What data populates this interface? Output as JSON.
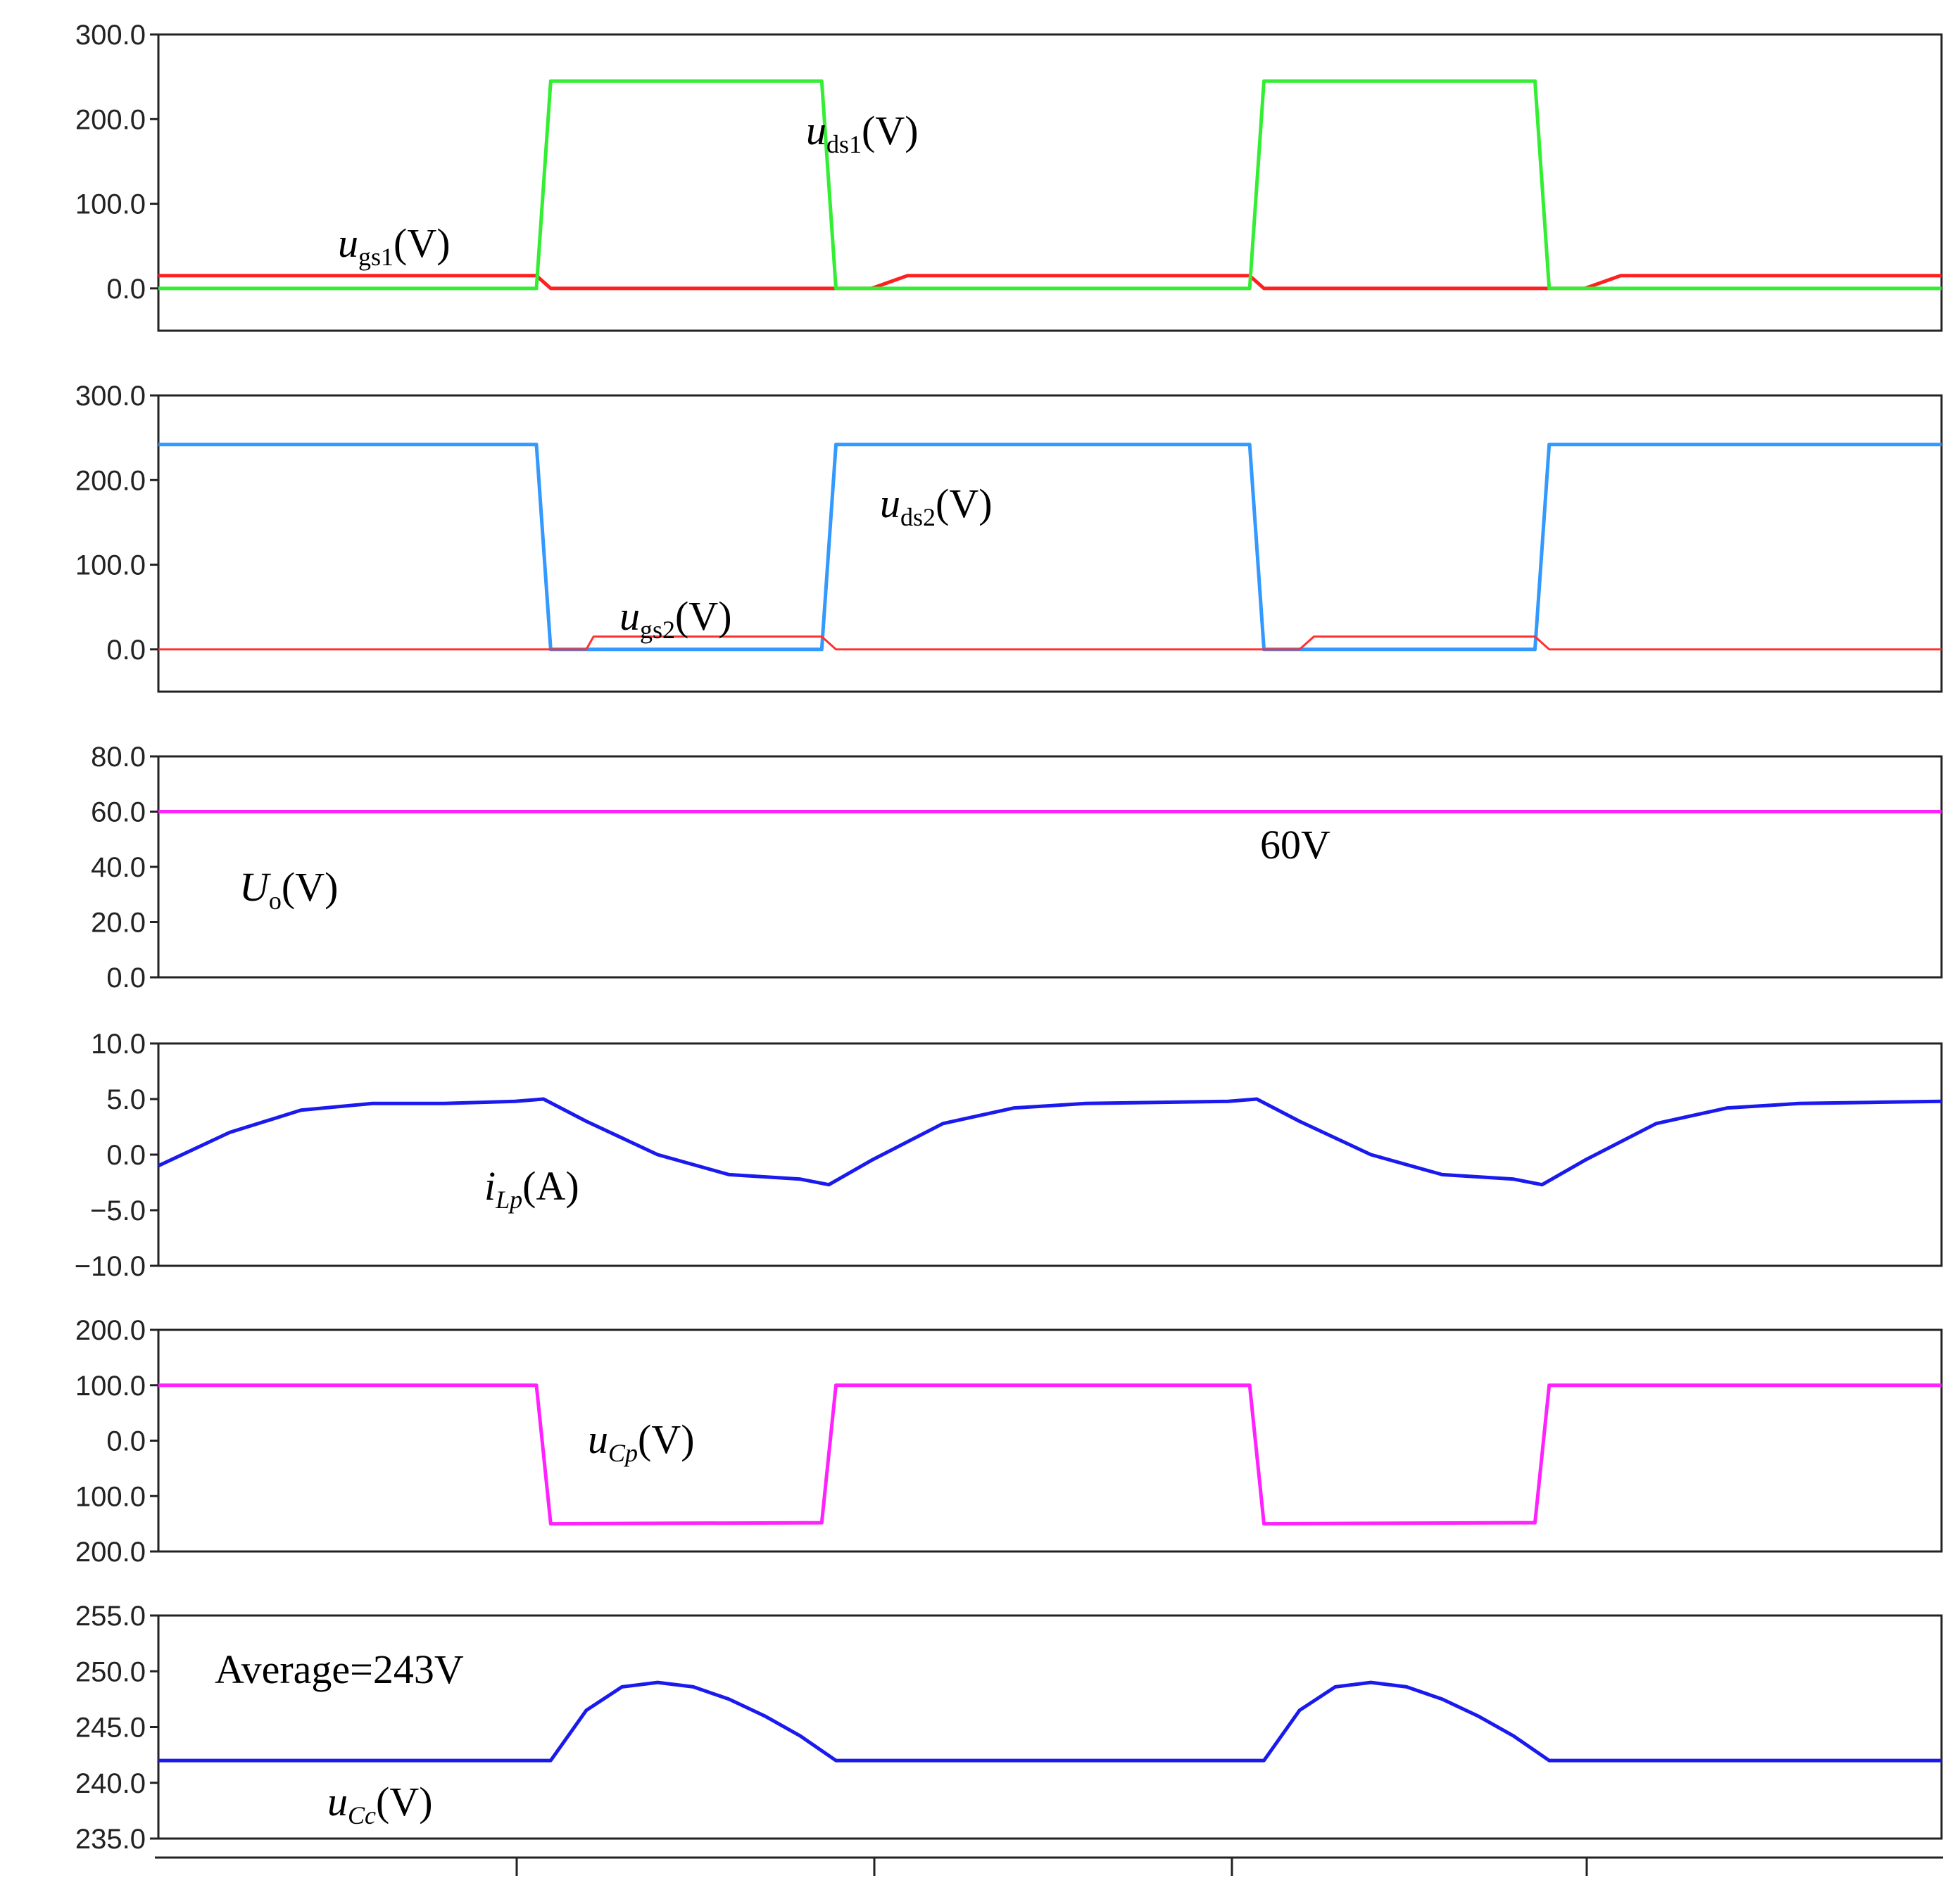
{
  "chart_data": [
    {
      "type": "line",
      "ylim": [
        -50,
        300
      ],
      "yticks": [
        "300.0",
        "200.0",
        "100.0",
        "0.0"
      ],
      "x": [
        0,
        5.3,
        5.5,
        9.3,
        9.5,
        10.0,
        10.5,
        15.3,
        15.5,
        19.3,
        19.5,
        20.0,
        20.5,
        25.0
      ],
      "series": [
        {
          "name": "u_gs1",
          "color": "#ff2020",
          "values": [
            15,
            15,
            0,
            0,
            0,
            0,
            15,
            15,
            0,
            0,
            0,
            0,
            15,
            15
          ]
        },
        {
          "name": "u_ds1",
          "color": "#33ee33",
          "values": [
            0,
            0,
            245,
            245,
            0,
            0,
            0,
            0,
            245,
            245,
            0,
            0,
            0,
            0
          ]
        }
      ],
      "annotations": [
        {
          "id": "uds1",
          "italic": "u",
          "sub": "ds1",
          "rest": "(V)"
        },
        {
          "id": "ugs1",
          "italic": "u",
          "sub": "gs1",
          "rest": "(V)"
        }
      ]
    },
    {
      "type": "line",
      "ylim": [
        -50,
        300
      ],
      "yticks": [
        "300.0",
        "200.0",
        "100.0",
        "0.0"
      ],
      "x": [
        0,
        5.3,
        5.5,
        6.0,
        6.1,
        9.3,
        9.5,
        15.3,
        15.5,
        16.0,
        16.2,
        19.3,
        19.5,
        25.0
      ],
      "series": [
        {
          "name": "u_ds2",
          "color": "#3399ff",
          "values": [
            242,
            242,
            0,
            0,
            0,
            0,
            242,
            242,
            0,
            0,
            0,
            0,
            242,
            242
          ]
        },
        {
          "name": "u_gs2",
          "color": "#ff3030",
          "values": [
            0,
            0,
            0,
            0,
            15,
            15,
            0,
            0,
            0,
            0,
            15,
            15,
            0,
            0
          ]
        }
      ],
      "annotations": [
        {
          "id": "uds2",
          "italic": "u",
          "sub": "ds2",
          "rest": "(V)"
        },
        {
          "id": "ugs2",
          "italic": "u",
          "sub": "gs2",
          "rest": "(V)"
        }
      ]
    },
    {
      "type": "line",
      "ylim": [
        0,
        80
      ],
      "yticks": [
        "80.0",
        "60.0",
        "40.0",
        "20.0",
        "0.0"
      ],
      "x": [
        0,
        25.0
      ],
      "series": [
        {
          "name": "U_o",
          "color": "#ff22ff",
          "values": [
            60,
            60
          ]
        }
      ],
      "annotations": [
        {
          "id": "uo",
          "italic": "U",
          "sub": "o",
          "rest": "(V)"
        },
        {
          "id": "sixty",
          "italic": "",
          "sub": "",
          "rest": "60V"
        }
      ]
    },
    {
      "type": "line",
      "ylim": [
        -10,
        10
      ],
      "yticks": [
        "10.0",
        "5.0",
        "0.0",
        "−5.0",
        "−10.0"
      ],
      "x": [
        0,
        1,
        2,
        3,
        4,
        5,
        5.4,
        6,
        7,
        8,
        9,
        9.4,
        10,
        11,
        12,
        13,
        14,
        15,
        15.4,
        16,
        17,
        18,
        19,
        19.4,
        20,
        21,
        22,
        23,
        24,
        25
      ],
      "series": [
        {
          "name": "i_Lp",
          "color": "#1a1aee",
          "values": [
            -1,
            2,
            4,
            4.6,
            4.6,
            4.8,
            5.0,
            3,
            0,
            -1.8,
            -2.2,
            -2.7,
            -0.5,
            2.8,
            4.2,
            4.6,
            4.7,
            4.8,
            5.0,
            3,
            0,
            -1.8,
            -2.2,
            -2.7,
            -0.5,
            2.8,
            4.2,
            4.6,
            4.7,
            4.8
          ]
        }
      ],
      "annotations": [
        {
          "id": "ilp",
          "italic": "i",
          "sub": "Lp",
          "rest": "(A)"
        }
      ]
    },
    {
      "type": "line",
      "ylim": [
        -200,
        200
      ],
      "yticks": [
        "200.0",
        "100.0",
        "0.0",
        "100.0",
        "200.0"
      ],
      "x": [
        0,
        5.3,
        5.5,
        9.3,
        9.5,
        15.3,
        15.5,
        19.3,
        19.5,
        25.0
      ],
      "series": [
        {
          "name": "u_Cp",
          "color": "#ff22ff",
          "values": [
            100,
            100,
            -150,
            -148,
            100,
            100,
            -150,
            -148,
            100,
            100
          ]
        }
      ],
      "annotations": [
        {
          "id": "ucp",
          "italic": "u",
          "sub": "Cp",
          "rest": "(V)"
        }
      ]
    },
    {
      "type": "line",
      "ylim": [
        235,
        255
      ],
      "yticks": [
        "255.0",
        "250.0",
        "245.0",
        "240.0",
        "235.0"
      ],
      "x": [
        0,
        5.5,
        6.0,
        6.5,
        7.0,
        7.5,
        8.0,
        8.5,
        9.0,
        9.5,
        15.5,
        16.0,
        16.5,
        17.0,
        17.5,
        18.0,
        18.5,
        19.0,
        19.5,
        25.0
      ],
      "series": [
        {
          "name": "u_Cc",
          "color": "#1a1aee",
          "values": [
            242,
            242,
            246.5,
            248.6,
            249,
            248.6,
            247.5,
            246,
            244.2,
            242,
            242,
            246.5,
            248.6,
            249,
            248.6,
            247.5,
            246,
            244.2,
            242,
            242
          ]
        }
      ],
      "annotations": [
        {
          "id": "average",
          "italic": "",
          "sub": "",
          "rest": "Average=243V"
        },
        {
          "id": "ucc",
          "italic": "u",
          "sub": "Cc",
          "rest": "(V)"
        }
      ]
    }
  ]
}
